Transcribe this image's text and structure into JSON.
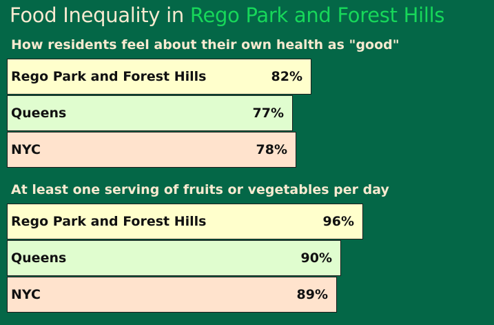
{
  "title": {
    "prefix": "Food Inequality in",
    "place": "Rego Park and Forest Hills"
  },
  "colors": {
    "background": "#046747",
    "text": "#f7ead0",
    "place_highlight": "#17d75a",
    "area_colors": [
      "#ffffcc",
      "#e0fdcf",
      "#ffe3cd"
    ]
  },
  "chart_data": [
    {
      "type": "bar",
      "orientation": "horizontal",
      "title": "How residents feel about their own health as \"good\"",
      "categories": [
        "Rego Park and Forest Hills",
        "Queens",
        "NYC"
      ],
      "values": [
        82,
        77,
        78
      ],
      "value_labels": [
        "82%",
        "77%",
        "78%"
      ],
      "unit": "%"
    },
    {
      "type": "bar",
      "orientation": "horizontal",
      "title": "At least one serving of fruits or vegetables per day",
      "categories": [
        "Rego Park and Forest Hills",
        "Queens",
        "NYC"
      ],
      "values": [
        96,
        90,
        89
      ],
      "value_labels": [
        "96%",
        "90%",
        "89%"
      ],
      "unit": "%"
    }
  ]
}
